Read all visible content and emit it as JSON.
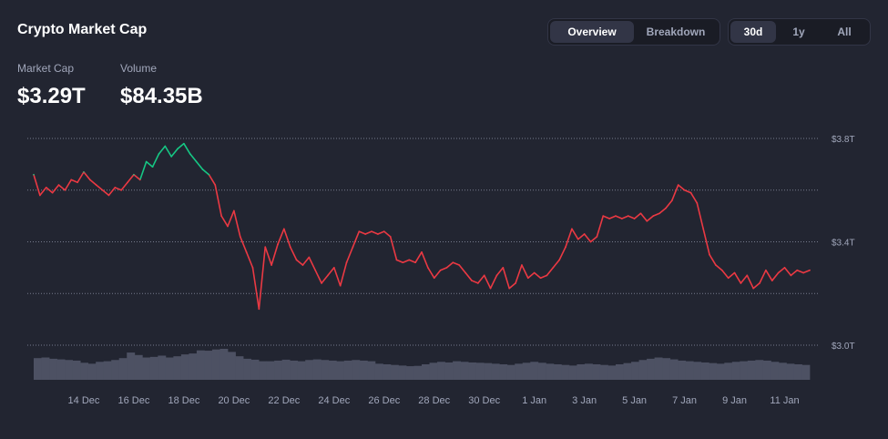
{
  "header": {
    "title": "Crypto Market Cap"
  },
  "view_toggle": {
    "options": [
      "Overview",
      "Breakdown"
    ],
    "selected": "Overview"
  },
  "range_toggle": {
    "options": [
      "30d",
      "1y",
      "All"
    ],
    "selected": "30d"
  },
  "stats": {
    "market_cap_label": "Market Cap",
    "market_cap_value": "$3.29T",
    "volume_label": "Volume",
    "volume_value": "$84.35B"
  },
  "colors": {
    "background": "#222531",
    "up": "#16c784",
    "down": "#ea3943",
    "volume_bar": "#4d5163",
    "grid": "#9aa0b4",
    "tick_text": "#a1a7bb"
  },
  "chart_data": {
    "type": "line",
    "title": "",
    "xlabel": "",
    "ylabel": "",
    "x_range": [
      "2024-12-12",
      "2025-01-12"
    ],
    "ylim": [
      3.0,
      3.8
    ],
    "y_ticks": [
      3.0,
      3.4,
      3.8
    ],
    "y_tick_labels": [
      "$3.0T",
      "$3.4T",
      "$3.8T"
    ],
    "y_unit": "T",
    "x_ticks": [
      "2024-12-14",
      "2024-12-16",
      "2024-12-18",
      "2024-12-20",
      "2024-12-22",
      "2024-12-24",
      "2024-12-26",
      "2024-12-28",
      "2024-12-30",
      "2025-01-01",
      "2025-01-03",
      "2025-01-05",
      "2025-01-07",
      "2025-01-09",
      "2025-01-11"
    ],
    "x_tick_labels": [
      "14 Dec",
      "16 Dec",
      "18 Dec",
      "20 Dec",
      "22 Dec",
      "24 Dec",
      "26 Dec",
      "28 Dec",
      "30 Dec",
      "1 Jan",
      "3 Jan",
      "5 Jan",
      "7 Jan",
      "9 Jan",
      "11 Jan"
    ],
    "grid": true,
    "baseline": 3.66,
    "series": [
      {
        "values": [
          [
            "2024-12-12 00:00",
            3.66
          ],
          [
            "2024-12-12 06:00",
            3.58
          ],
          [
            "2024-12-12 12:00",
            3.61
          ],
          [
            "2024-12-12 18:00",
            3.59
          ],
          [
            "2024-12-13 00:00",
            3.62
          ],
          [
            "2024-12-13 06:00",
            3.6
          ],
          [
            "2024-12-13 12:00",
            3.64
          ],
          [
            "2024-12-13 18:00",
            3.63
          ],
          [
            "2024-12-14 00:00",
            3.67
          ],
          [
            "2024-12-14 06:00",
            3.64
          ],
          [
            "2024-12-14 12:00",
            3.62
          ],
          [
            "2024-12-14 18:00",
            3.6
          ],
          [
            "2024-12-15 00:00",
            3.58
          ],
          [
            "2024-12-15 06:00",
            3.61
          ],
          [
            "2024-12-15 12:00",
            3.6
          ],
          [
            "2024-12-15 18:00",
            3.63
          ],
          [
            "2024-12-16 00:00",
            3.66
          ],
          [
            "2024-12-16 06:00",
            3.64
          ],
          [
            "2024-12-16 12:00",
            3.71
          ],
          [
            "2024-12-16 18:00",
            3.69
          ],
          [
            "2024-12-17 00:00",
            3.74
          ],
          [
            "2024-12-17 06:00",
            3.77
          ],
          [
            "2024-12-17 12:00",
            3.73
          ],
          [
            "2024-12-17 18:00",
            3.76
          ],
          [
            "2024-12-18 00:00",
            3.78
          ],
          [
            "2024-12-18 06:00",
            3.74
          ],
          [
            "2024-12-18 12:00",
            3.71
          ],
          [
            "2024-12-18 18:00",
            3.68
          ],
          [
            "2024-12-19 00:00",
            3.66
          ],
          [
            "2024-12-19 06:00",
            3.62
          ],
          [
            "2024-12-19 12:00",
            3.5
          ],
          [
            "2024-12-19 18:00",
            3.46
          ],
          [
            "2024-12-20 00:00",
            3.52
          ],
          [
            "2024-12-20 06:00",
            3.42
          ],
          [
            "2024-12-20 12:00",
            3.36
          ],
          [
            "2024-12-20 18:00",
            3.3
          ],
          [
            "2024-12-21 00:00",
            3.14
          ],
          [
            "2024-12-21 06:00",
            3.38
          ],
          [
            "2024-12-21 12:00",
            3.31
          ],
          [
            "2024-12-21 18:00",
            3.39
          ],
          [
            "2024-12-22 00:00",
            3.45
          ],
          [
            "2024-12-22 06:00",
            3.38
          ],
          [
            "2024-12-22 12:00",
            3.33
          ],
          [
            "2024-12-22 18:00",
            3.31
          ],
          [
            "2024-12-23 00:00",
            3.34
          ],
          [
            "2024-12-23 06:00",
            3.29
          ],
          [
            "2024-12-23 12:00",
            3.24
          ],
          [
            "2024-12-23 18:00",
            3.27
          ],
          [
            "2024-12-24 00:00",
            3.3
          ],
          [
            "2024-12-24 06:00",
            3.23
          ],
          [
            "2024-12-24 12:00",
            3.32
          ],
          [
            "2024-12-24 18:00",
            3.38
          ],
          [
            "2024-12-25 00:00",
            3.44
          ],
          [
            "2024-12-25 06:00",
            3.43
          ],
          [
            "2024-12-25 12:00",
            3.44
          ],
          [
            "2024-12-25 18:00",
            3.43
          ],
          [
            "2024-12-26 00:00",
            3.44
          ],
          [
            "2024-12-26 06:00",
            3.42
          ],
          [
            "2024-12-26 12:00",
            3.33
          ],
          [
            "2024-12-26 18:00",
            3.32
          ],
          [
            "2024-12-27 00:00",
            3.33
          ],
          [
            "2024-12-27 06:00",
            3.32
          ],
          [
            "2024-12-27 12:00",
            3.36
          ],
          [
            "2024-12-27 18:00",
            3.3
          ],
          [
            "2024-12-28 00:00",
            3.26
          ],
          [
            "2024-12-28 06:00",
            3.29
          ],
          [
            "2024-12-28 12:00",
            3.3
          ],
          [
            "2024-12-28 18:00",
            3.32
          ],
          [
            "2024-12-29 00:00",
            3.31
          ],
          [
            "2024-12-29 06:00",
            3.28
          ],
          [
            "2024-12-29 12:00",
            3.25
          ],
          [
            "2024-12-29 18:00",
            3.24
          ],
          [
            "2024-12-30 00:00",
            3.27
          ],
          [
            "2024-12-30 06:00",
            3.22
          ],
          [
            "2024-12-30 12:00",
            3.27
          ],
          [
            "2024-12-30 18:00",
            3.3
          ],
          [
            "2024-12-31 00:00",
            3.22
          ],
          [
            "2024-12-31 06:00",
            3.24
          ],
          [
            "2024-12-31 12:00",
            3.31
          ],
          [
            "2024-12-31 18:00",
            3.26
          ],
          [
            "2025-01-01 00:00",
            3.28
          ],
          [
            "2025-01-01 06:00",
            3.26
          ],
          [
            "2025-01-01 12:00",
            3.27
          ],
          [
            "2025-01-01 18:00",
            3.3
          ],
          [
            "2025-01-02 00:00",
            3.33
          ],
          [
            "2025-01-02 06:00",
            3.38
          ],
          [
            "2025-01-02 12:00",
            3.45
          ],
          [
            "2025-01-02 18:00",
            3.41
          ],
          [
            "2025-01-03 00:00",
            3.43
          ],
          [
            "2025-01-03 06:00",
            3.4
          ],
          [
            "2025-01-03 12:00",
            3.42
          ],
          [
            "2025-01-03 18:00",
            3.5
          ],
          [
            "2025-01-04 00:00",
            3.49
          ],
          [
            "2025-01-04 06:00",
            3.5
          ],
          [
            "2025-01-04 12:00",
            3.49
          ],
          [
            "2025-01-04 18:00",
            3.5
          ],
          [
            "2025-01-05 00:00",
            3.49
          ],
          [
            "2025-01-05 06:00",
            3.51
          ],
          [
            "2025-01-05 12:00",
            3.48
          ],
          [
            "2025-01-05 18:00",
            3.5
          ],
          [
            "2025-01-06 00:00",
            3.51
          ],
          [
            "2025-01-06 06:00",
            3.53
          ],
          [
            "2025-01-06 12:00",
            3.56
          ],
          [
            "2025-01-06 18:00",
            3.62
          ],
          [
            "2025-01-07 00:00",
            3.6
          ],
          [
            "2025-01-07 06:00",
            3.59
          ],
          [
            "2025-01-07 12:00",
            3.55
          ],
          [
            "2025-01-07 18:00",
            3.45
          ],
          [
            "2025-01-08 00:00",
            3.35
          ],
          [
            "2025-01-08 06:00",
            3.31
          ],
          [
            "2025-01-08 12:00",
            3.29
          ],
          [
            "2025-01-08 18:00",
            3.26
          ],
          [
            "2025-01-09 00:00",
            3.28
          ],
          [
            "2025-01-09 06:00",
            3.24
          ],
          [
            "2025-01-09 12:00",
            3.27
          ],
          [
            "2025-01-09 18:00",
            3.22
          ],
          [
            "2025-01-10 00:00",
            3.24
          ],
          [
            "2025-01-10 06:00",
            3.29
          ],
          [
            "2025-01-10 12:00",
            3.25
          ],
          [
            "2025-01-10 18:00",
            3.28
          ],
          [
            "2025-01-11 00:00",
            3.3
          ],
          [
            "2025-01-11 06:00",
            3.27
          ],
          [
            "2025-01-11 12:00",
            3.29
          ],
          [
            "2025-01-11 18:00",
            3.28
          ],
          [
            "2025-01-12 00:00",
            3.29
          ]
        ]
      },
      {
        "name": "",
        "type": "bar",
        "values": [
          0.7,
          0.72,
          0.68,
          0.66,
          0.64,
          0.62,
          0.55,
          0.52,
          0.58,
          0.6,
          0.64,
          0.7,
          0.88,
          0.8,
          0.72,
          0.74,
          0.78,
          0.72,
          0.76,
          0.82,
          0.85,
          0.95,
          0.94,
          0.98,
          1.0,
          0.9,
          0.76,
          0.68,
          0.65,
          0.6,
          0.6,
          0.62,
          0.65,
          0.62,
          0.6,
          0.64,
          0.66,
          0.64,
          0.62,
          0.6,
          0.62,
          0.64,
          0.62,
          0.6,
          0.52,
          0.5,
          0.48,
          0.46,
          0.44,
          0.45,
          0.5,
          0.55,
          0.58,
          0.56,
          0.6,
          0.58,
          0.56,
          0.55,
          0.54,
          0.52,
          0.5,
          0.48,
          0.52,
          0.55,
          0.58,
          0.55,
          0.52,
          0.5,
          0.48,
          0.46,
          0.5,
          0.52,
          0.5,
          0.48,
          0.46,
          0.5,
          0.54,
          0.58,
          0.64,
          0.68,
          0.72,
          0.7,
          0.66,
          0.62,
          0.6,
          0.58,
          0.56,
          0.54,
          0.52,
          0.55,
          0.58,
          0.6,
          0.62,
          0.64,
          0.62,
          0.58,
          0.55,
          0.52,
          0.5,
          0.48
        ]
      }
    ]
  }
}
